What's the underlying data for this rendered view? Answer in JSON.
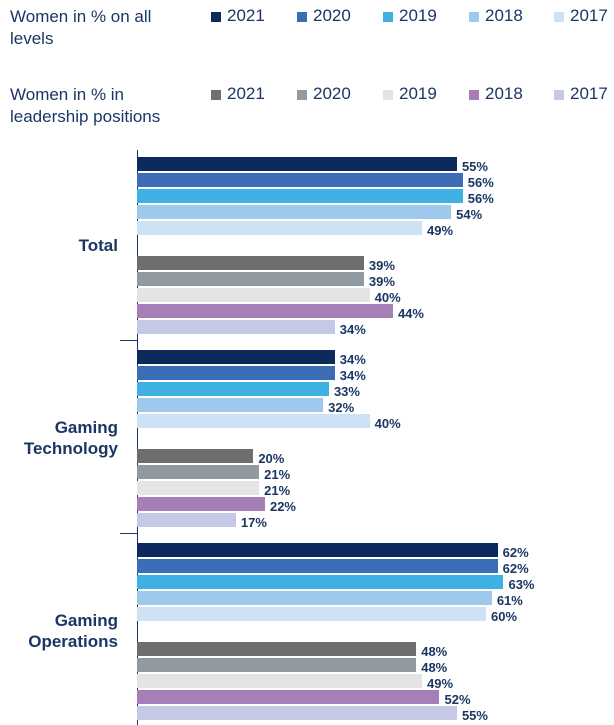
{
  "chart_data": {
    "type": "bar",
    "orientation": "horizontal",
    "categories": [
      "Total",
      "Gaming Technology",
      "Gaming Operations"
    ],
    "xlim": [
      0,
      82
    ],
    "series_groups": [
      {
        "name": "Women in % on all levels",
        "series": [
          {
            "name": "2021",
            "color": "#0d2a5c",
            "values": [
              55,
              34,
              62
            ],
            "value_labels": [
              "55%",
              "34%",
              "62%"
            ]
          },
          {
            "name": "2020",
            "color": "#3a6db5",
            "values": [
              56,
              34,
              62
            ],
            "value_labels": [
              "56%",
              "34%",
              "62%"
            ]
          },
          {
            "name": "2019",
            "color": "#3fb0e4",
            "values": [
              56,
              33,
              63
            ],
            "value_labels": [
              "56%",
              "33%",
              "63%"
            ]
          },
          {
            "name": "2018",
            "color": "#9ec9ec",
            "values": [
              54,
              32,
              61
            ],
            "value_labels": [
              "54%",
              "32%",
              "61%"
            ]
          },
          {
            "name": "2017",
            "color": "#cfe2f5",
            "values": [
              49,
              40,
              60
            ],
            "value_labels": [
              "49%",
              "40%",
              "60%"
            ]
          }
        ]
      },
      {
        "name": "Women in % in leadership positions",
        "series": [
          {
            "name": "2021",
            "color": "#6e6e6e",
            "values": [
              39,
              20,
              48
            ],
            "value_labels": [
              "39%",
              "20%",
              "48%"
            ]
          },
          {
            "name": "2020",
            "color": "#8f9aa3",
            "values": [
              39,
              21,
              48
            ],
            "value_labels": [
              "39%",
              "21%",
              "48%"
            ]
          },
          {
            "name": "2019",
            "color": "#e4e4e4",
            "values": [
              40,
              21,
              49
            ],
            "value_labels": [
              "40%",
              "21%",
              "49%"
            ]
          },
          {
            "name": "2018",
            "color": "#a57fb5",
            "values": [
              44,
              22,
              52
            ],
            "value_labels": [
              "44%",
              "22%",
              "52%"
            ]
          },
          {
            "name": "2017",
            "color": "#c5c9e6",
            "values": [
              34,
              17,
              55
            ],
            "value_labels": [
              "34%",
              "17%",
              "55%"
            ]
          }
        ]
      }
    ]
  }
}
